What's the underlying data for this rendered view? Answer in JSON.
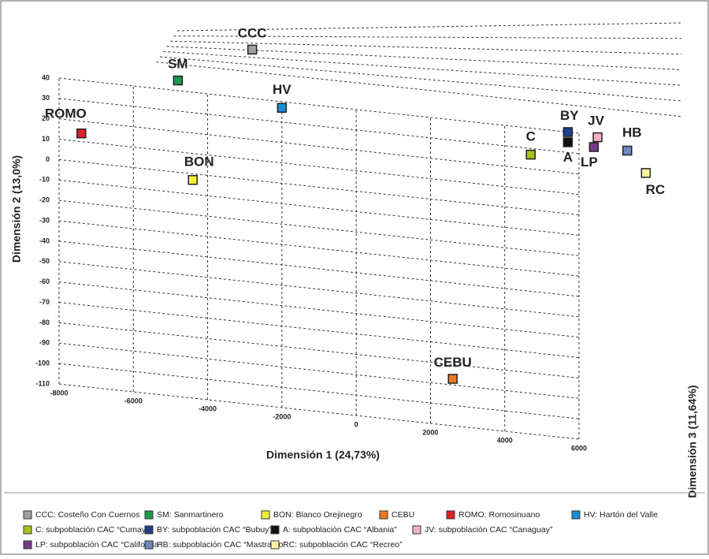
{
  "chart_data": {
    "type": "scatter3d",
    "xlabel": "Dimensión 1 (24,73%)",
    "ylabel": "Dimensión 2 (13,0%)",
    "zlabel": "Dimensión 3 (11,64%)",
    "xlim": [
      -8000,
      6000
    ],
    "xticks": [
      -8000,
      -6000,
      -4000,
      -2000,
      0,
      2000,
      4000,
      6000
    ],
    "ylim": [
      -110,
      40
    ],
    "yticks": [
      40,
      30,
      20,
      10,
      0,
      -10,
      -20,
      -30,
      -40,
      -50,
      -60,
      -70,
      -80,
      -90,
      -100,
      -110
    ],
    "grid": true,
    "series": [
      {
        "name": "CCC: Costeño Con Cuernos",
        "label": "CCC",
        "color": "#a0a0a0",
        "x": -2800,
        "y": 64
      },
      {
        "name": "SM: Sanmartinero",
        "label": "SM",
        "color": "#1a9a4a",
        "x": -4800,
        "y": 45
      },
      {
        "name": "BON: Blanco Orejinegro",
        "label": "BON",
        "color": "#f5ef3a",
        "x": -4400,
        "y": -3
      },
      {
        "name": "CEBU",
        "label": "CEBU",
        "color": "#f07820",
        "x": 2600,
        "y": -87
      },
      {
        "name": "ROMO: Romosinuano",
        "label": "ROMO",
        "color": "#e0202a",
        "x": -7400,
        "y": 14
      },
      {
        "name": "HV: Hartón del Valle",
        "label": "HV",
        "color": "#1a8fd6",
        "x": -2000,
        "y": 37
      },
      {
        "name": "C: subpoblación CAC “Cumay”",
        "label": "C",
        "color": "#a6c21a",
        "x": 4700,
        "y": 27
      },
      {
        "name": "BY: subpoblación CAC “Bubuy”",
        "label": "BY",
        "color": "#1f3f8f",
        "x": 5700,
        "y": 40
      },
      {
        "name": "A: subpoblación CAC “Albania”",
        "label": "A",
        "color": "#111111",
        "x": 5700,
        "y": 35
      },
      {
        "name": "JV: subpoblación CAC “Canaguay”",
        "label": "JV",
        "color": "#f5b0c8",
        "x": 6500,
        "y": 39
      },
      {
        "name": "LP: subpoblación CAC “California”",
        "label": "LP",
        "color": "#7a3a8a",
        "x": 6400,
        "y": 34
      },
      {
        "name": "HB: subpoblación CAC “Mastranto”",
        "label": "HB",
        "color": "#6a8ac0",
        "x": 7300,
        "y": 34
      },
      {
        "name": "RC: subpoblación CAC “Recreo”",
        "label": "RC",
        "color": "#fff5a0",
        "x": 7800,
        "y": 24
      }
    ]
  }
}
